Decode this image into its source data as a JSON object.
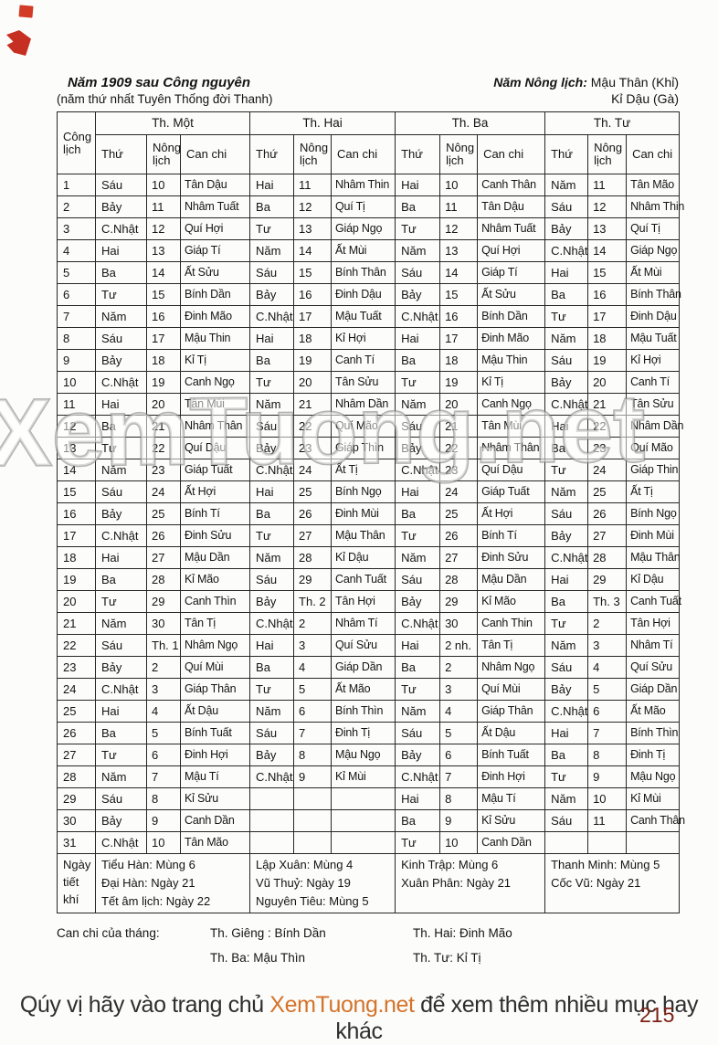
{
  "page": {
    "title_left": "Năm 1909 sau Công nguyên",
    "subtitle_left": "(năm thứ nhất Tuyên Thống đời Thanh)",
    "title_right_label": "Năm Nông lịch:",
    "title_right_value": " Mậu Thân (Khỉ)",
    "subtitle_right": "Kỉ Dậu (Gà)",
    "watermark": "XemTuong.net",
    "page_number": "215",
    "footer": {
      "prefix": "Qúy vị hãy vào trang chủ ",
      "link": "XemTuong.net",
      "suffix": " để xem thêm nhiều mục hay khác"
    },
    "colors": {
      "accent_orange": "#d4732a",
      "page_number_red": "#7c2014",
      "mark_red": "#d23b25",
      "border_black": "#262626"
    }
  },
  "table": {
    "corner_header": "Công lịch",
    "months": [
      "Th. Một",
      "Th. Hai",
      "Th. Ba",
      "Th. Tư"
    ],
    "sub_headers": [
      "Thứ",
      "Nông lịch",
      "Can chi"
    ],
    "rows": [
      [
        "1",
        [
          "Sáu",
          "10",
          "Tân Dậu"
        ],
        [
          "Hai",
          "11",
          "Nhâm Thin"
        ],
        [
          "Hai",
          "10",
          "Canh Thân"
        ],
        [
          "Năm",
          "11",
          "Tân Mão"
        ]
      ],
      [
        "2",
        [
          "Bảy",
          "11",
          "Nhâm Tuất"
        ],
        [
          "Ba",
          "12",
          "Quí Tị"
        ],
        [
          "Ba",
          "11",
          "Tân Dậu"
        ],
        [
          "Sáu",
          "12",
          "Nhâm Thin"
        ]
      ],
      [
        "3",
        [
          "C.Nhật",
          "12",
          "Quí Hợi"
        ],
        [
          "Tư",
          "13",
          "Giáp Ngọ"
        ],
        [
          "Tư",
          "12",
          "Nhâm Tuất"
        ],
        [
          "Bảy",
          "13",
          "Quí Tị"
        ]
      ],
      [
        "4",
        [
          "Hai",
          "13",
          "Giáp Tí"
        ],
        [
          "Năm",
          "14",
          "Ất Mùi"
        ],
        [
          "Năm",
          "13",
          "Quí Hợi"
        ],
        [
          "C.Nhật",
          "14",
          "Giáp Ngọ"
        ]
      ],
      [
        "5",
        [
          "Ba",
          "14",
          "Ất Sửu"
        ],
        [
          "Sáu",
          "15",
          "Bính Thân"
        ],
        [
          "Sáu",
          "14",
          "Giáp Tí"
        ],
        [
          "Hai",
          "15",
          "Ất Mùi"
        ]
      ],
      [
        "6",
        [
          "Tư",
          "15",
          "Bính Dần"
        ],
        [
          "Bảy",
          "16",
          "Đinh Dậu"
        ],
        [
          "Bảy",
          "15",
          "Ất Sửu"
        ],
        [
          "Ba",
          "16",
          "Bính Thân"
        ]
      ],
      [
        "7",
        [
          "Năm",
          "16",
          "Đinh Mão"
        ],
        [
          "C.Nhật",
          "17",
          "Mậu Tuất"
        ],
        [
          "C.Nhật",
          "16",
          "Bính Dần"
        ],
        [
          "Tư",
          "17",
          "Đinh Dậu"
        ]
      ],
      [
        "8",
        [
          "Sáu",
          "17",
          "Mậu Thin"
        ],
        [
          "Hai",
          "18",
          "Kỉ Hợi"
        ],
        [
          "Hai",
          "17",
          "Đinh Mão"
        ],
        [
          "Năm",
          "18",
          "Mậu Tuất"
        ]
      ],
      [
        "9",
        [
          "Bảy",
          "18",
          "Kỉ Tị"
        ],
        [
          "Ba",
          "19",
          "Canh Tí"
        ],
        [
          "Ba",
          "18",
          "Mậu Thin"
        ],
        [
          "Sáu",
          "19",
          "Kỉ Hợi"
        ]
      ],
      [
        "10",
        [
          "C.Nhật",
          "19",
          "Canh Ngọ"
        ],
        [
          "Tư",
          "20",
          "Tân Sửu"
        ],
        [
          "Tư",
          "19",
          "Kỉ Tị"
        ],
        [
          "Bảy",
          "20",
          "Canh Tí"
        ]
      ],
      [
        "11",
        [
          "Hai",
          "20",
          "Tân Mùi"
        ],
        [
          "Năm",
          "21",
          "Nhâm Dần"
        ],
        [
          "Năm",
          "20",
          "Canh Ngọ"
        ],
        [
          "C.Nhật",
          "21",
          "Tân Sửu"
        ]
      ],
      [
        "12",
        [
          "Ba",
          "21",
          "Nhâm Thân"
        ],
        [
          "Sáu",
          "22",
          "Quí Mão"
        ],
        [
          "Sáu",
          "21",
          "Tân Mùi"
        ],
        [
          "Hai",
          "22",
          "Nhâm Dần"
        ]
      ],
      [
        "13",
        [
          "Tư",
          "22",
          "Quí Dậu"
        ],
        [
          "Bảy",
          "23",
          "Giáp Thìn"
        ],
        [
          "Bảy",
          "22",
          "Nhâm Thân"
        ],
        [
          "Ba",
          "23",
          "Quí Mão"
        ]
      ],
      [
        "14",
        [
          "Năm",
          "23",
          "Giáp Tuất"
        ],
        [
          "C.Nhật",
          "24",
          "Ất Tị"
        ],
        [
          "C.Nhật",
          "23",
          "Quí Dậu"
        ],
        [
          "Tư",
          "24",
          "Giáp Thin"
        ]
      ],
      [
        "15",
        [
          "Sáu",
          "24",
          "Ất Hợi"
        ],
        [
          "Hai",
          "25",
          "Bính Ngọ"
        ],
        [
          "Hai",
          "24",
          "Giáp Tuất"
        ],
        [
          "Năm",
          "25",
          "Ất Tị"
        ]
      ],
      [
        "16",
        [
          "Bảy",
          "25",
          "Bính Tí"
        ],
        [
          "Ba",
          "26",
          "Đinh Mùi"
        ],
        [
          "Ba",
          "25",
          "Ất Hợi"
        ],
        [
          "Sáu",
          "26",
          "Bính Ngọ"
        ]
      ],
      [
        "17",
        [
          "C.Nhật",
          "26",
          "Đinh Sửu"
        ],
        [
          "Tư",
          "27",
          "Mậu Thân"
        ],
        [
          "Tư",
          "26",
          "Bính Tí"
        ],
        [
          "Bảy",
          "27",
          "Đinh Mùi"
        ]
      ],
      [
        "18",
        [
          "Hai",
          "27",
          "Mậu Dần"
        ],
        [
          "Năm",
          "28",
          "Kỉ Dậu"
        ],
        [
          "Năm",
          "27",
          "Đinh Sửu"
        ],
        [
          "C.Nhật",
          "28",
          "Mậu Thân"
        ]
      ],
      [
        "19",
        [
          "Ba",
          "28",
          "Kỉ Mão"
        ],
        [
          "Sáu",
          "29",
          "Canh Tuất"
        ],
        [
          "Sáu",
          "28",
          "Mậu Dần"
        ],
        [
          "Hai",
          "29",
          "Kỉ Dậu"
        ]
      ],
      [
        "20",
        [
          "Tư",
          "29",
          "Canh Thìn"
        ],
        [
          "Bảy",
          "Th. 2",
          "Tân Hợi"
        ],
        [
          "Bảy",
          "29",
          "Kỉ Mão"
        ],
        [
          "Ba",
          "Th. 3",
          "Canh Tuất"
        ]
      ],
      [
        "21",
        [
          "Năm",
          "30",
          "Tân Tị"
        ],
        [
          "C.Nhật",
          "2",
          "Nhâm Tí"
        ],
        [
          "C.Nhật",
          "30",
          "Canh Thin"
        ],
        [
          "Tư",
          "2",
          "Tân Hợi"
        ]
      ],
      [
        "22",
        [
          "Sáu",
          "Th. 1",
          "Nhâm Ngọ"
        ],
        [
          "Hai",
          "3",
          "Quí Sửu"
        ],
        [
          "Hai",
          "2 nh.",
          "Tân Tị"
        ],
        [
          "Năm",
          "3",
          "Nhâm Tí"
        ]
      ],
      [
        "23",
        [
          "Bảy",
          "2",
          "Quí Mùi"
        ],
        [
          "Ba",
          "4",
          "Giáp Dần"
        ],
        [
          "Ba",
          "2",
          "Nhâm Ngọ"
        ],
        [
          "Sáu",
          "4",
          "Quí Sửu"
        ]
      ],
      [
        "24",
        [
          "C.Nhật",
          "3",
          "Giáp Thân"
        ],
        [
          "Tư",
          "5",
          "Ất Mão"
        ],
        [
          "Tư",
          "3",
          "Quí Mùi"
        ],
        [
          "Bảy",
          "5",
          "Giáp Dần"
        ]
      ],
      [
        "25",
        [
          "Hai",
          "4",
          "Ất Dậu"
        ],
        [
          "Năm",
          "6",
          "Bính Thìn"
        ],
        [
          "Năm",
          "4",
          "Giáp Thân"
        ],
        [
          "C.Nhật",
          "6",
          "Ất Mão"
        ]
      ],
      [
        "26",
        [
          "Ba",
          "5",
          "Bính Tuất"
        ],
        [
          "Sáu",
          "7",
          "Đinh Tị"
        ],
        [
          "Sáu",
          "5",
          "Ất Dậu"
        ],
        [
          "Hai",
          "7",
          "Bính Thìn"
        ]
      ],
      [
        "27",
        [
          "Tư",
          "6",
          "Đinh Hợi"
        ],
        [
          "Bảy",
          "8",
          "Mậu Ngọ"
        ],
        [
          "Bảy",
          "6",
          "Bính Tuất"
        ],
        [
          "Ba",
          "8",
          "Đinh Tị"
        ]
      ],
      [
        "28",
        [
          "Năm",
          "7",
          "Mậu Tí"
        ],
        [
          "C.Nhật",
          "9",
          "Kỉ Mùi"
        ],
        [
          "C.Nhật",
          "7",
          "Đinh Hợi"
        ],
        [
          "Tư",
          "9",
          "Mậu Ngọ"
        ]
      ],
      [
        "29",
        [
          "Sáu",
          "8",
          "Kỉ Sửu"
        ],
        [
          "",
          "",
          ""
        ],
        [
          "Hai",
          "8",
          "Mậu Tí"
        ],
        [
          "Năm",
          "10",
          "Kỉ Mùi"
        ]
      ],
      [
        "30",
        [
          "Bảy",
          "9",
          "Canh Dần"
        ],
        [
          "",
          "",
          ""
        ],
        [
          "Ba",
          "9",
          "Kỉ Sửu"
        ],
        [
          "Sáu",
          "11",
          "Canh Thân"
        ]
      ],
      [
        "31",
        [
          "C.Nhật",
          "10",
          "Tân Mão"
        ],
        [
          "",
          "",
          ""
        ],
        [
          "Tư",
          "10",
          "Canh Dần"
        ],
        [
          "",
          "",
          ""
        ]
      ]
    ],
    "tiet_khi": {
      "label": "Ngày tiết khí",
      "columns": [
        [
          "Tiểu Hàn: Mùng 6",
          "Đại Hàn: Ngày 21",
          "Tết âm lịch: Ngày 22"
        ],
        [
          "Lập Xuân: Mùng 4",
          "Vũ Thuỷ: Ngày 19",
          "Nguyên Tiêu: Mùng 5"
        ],
        [
          "Kinh Trập: Mùng 6",
          "Xuân Phân: Ngày 21"
        ],
        [
          "Thanh Minh: Mùng 5",
          "Cốc Vũ: Ngày 21"
        ]
      ]
    },
    "can_chi_footer": {
      "label": "Can chi của tháng:",
      "col1": [
        "Th. Giêng : Bính Dần",
        "Th. Ba: Mậu Thìn"
      ],
      "col2": [
        "Th. Hai: Đinh Mão",
        "Th. Tư: Kỉ Tị"
      ]
    }
  }
}
